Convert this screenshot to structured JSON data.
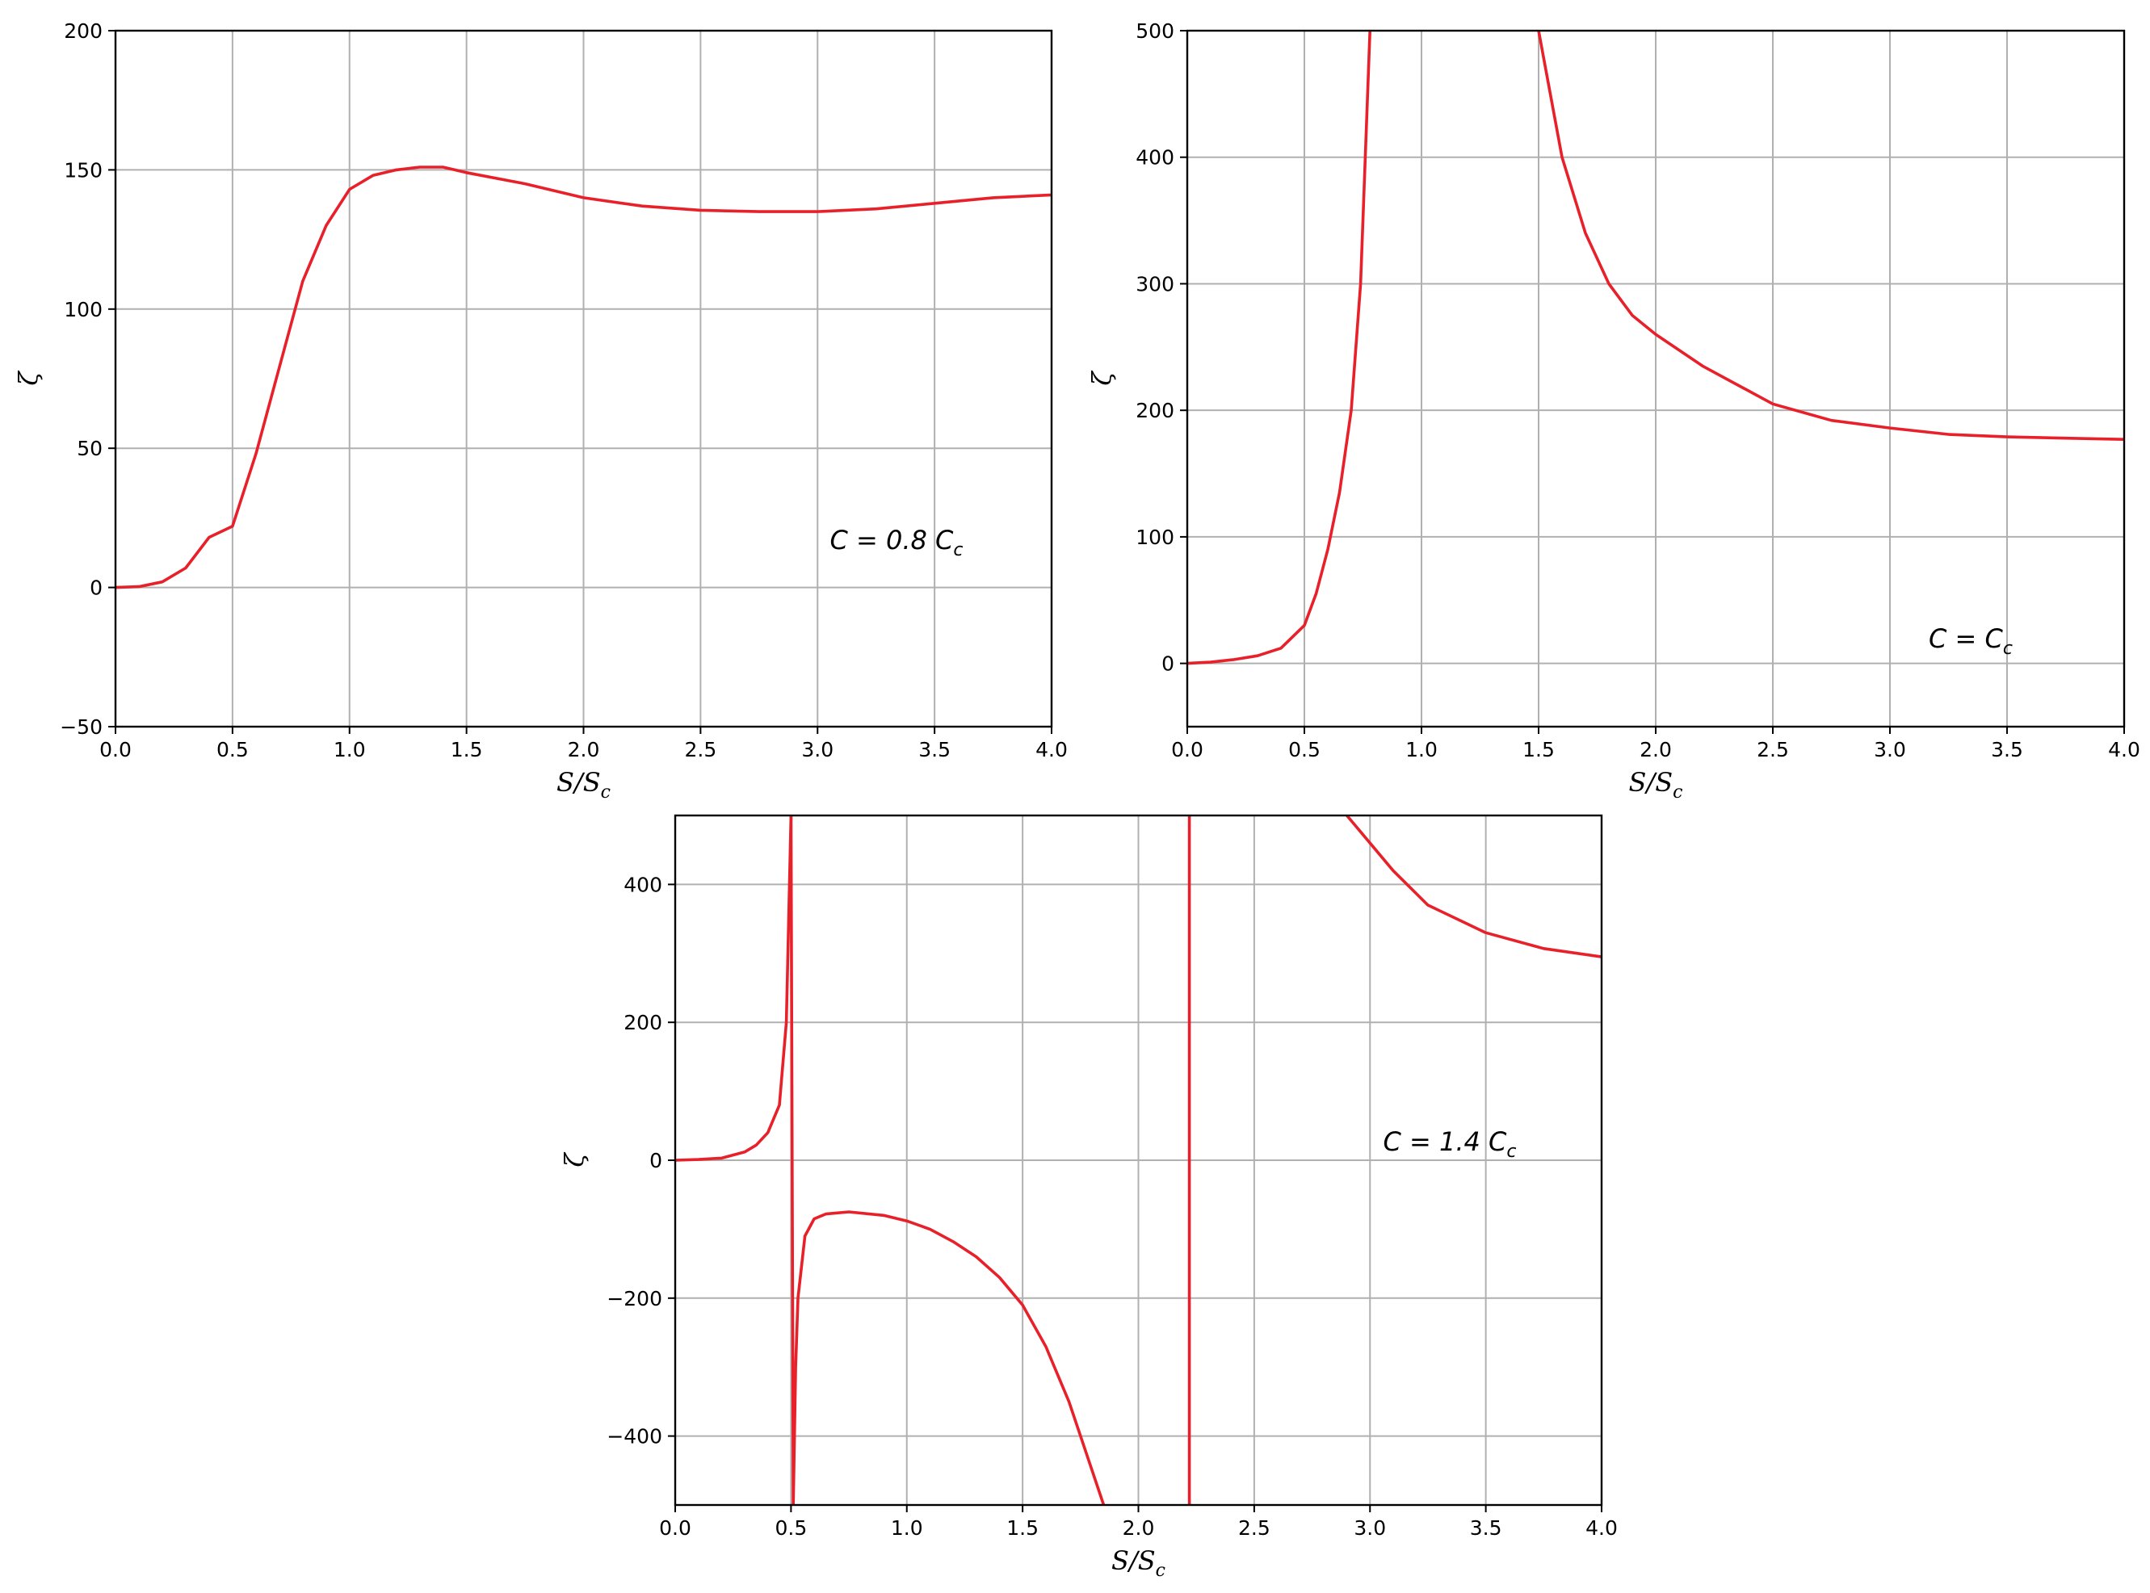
{
  "chart_data": [
    {
      "type": "line",
      "xlabel": "S/S_c",
      "ylabel": "ζ",
      "annotation": {
        "prefix": "C = 0.8 C",
        "subscript": "c"
      },
      "xlim": [
        0,
        4
      ],
      "ylim": [
        -50,
        200
      ],
      "xticks": [
        "0.0",
        "0.5",
        "1.0",
        "1.5",
        "2.0",
        "2.5",
        "3.0",
        "3.5",
        "4.0"
      ],
      "yticks": [
        "−50",
        "0",
        "50",
        "100",
        "150",
        "200"
      ],
      "ytick_values": [
        -50,
        0,
        50,
        100,
        150,
        200
      ],
      "grid": true,
      "color": "#e8202a",
      "series": [
        {
          "x": [
            0,
            0.1,
            0.2,
            0.3,
            0.4,
            0.5,
            0.6,
            0.7,
            0.8,
            0.9,
            1.0,
            1.1,
            1.2,
            1.3,
            1.4,
            1.5,
            1.75,
            2.0,
            2.25,
            2.5,
            2.75,
            3.0,
            3.25,
            3.5,
            3.75,
            4.0
          ],
          "y": [
            0,
            0.3,
            2,
            7,
            18,
            22,
            48,
            79,
            110,
            130,
            143,
            148,
            150,
            151,
            151,
            149,
            145,
            140,
            137,
            135.5,
            135,
            135,
            136,
            138,
            140,
            141
          ]
        }
      ]
    },
    {
      "type": "line",
      "xlabel": "S/S_c",
      "ylabel": "ζ",
      "annotation": {
        "prefix": "C = C",
        "subscript": "c"
      },
      "xlim": [
        0,
        4
      ],
      "ylim": [
        -50,
        500
      ],
      "xticks": [
        "0.0",
        "0.5",
        "1.0",
        "1.5",
        "2.0",
        "2.5",
        "3.0",
        "3.5",
        "4.0"
      ],
      "yticks": [
        "0",
        "100",
        "200",
        "300",
        "400",
        "500"
      ],
      "ytick_values": [
        0,
        100,
        200,
        300,
        400,
        500
      ],
      "grid": true,
      "color": "#e8202a",
      "series": [
        {
          "x": [
            0,
            0.1,
            0.2,
            0.3,
            0.4,
            0.5,
            0.55,
            0.6,
            0.65,
            0.7,
            0.74,
            0.78
          ],
          "y": [
            0,
            1,
            3,
            6,
            12,
            30,
            55,
            90,
            135,
            200,
            300,
            500
          ]
        },
        {
          "x": [
            1.5,
            1.6,
            1.7,
            1.8,
            1.9,
            2.0,
            2.2,
            2.5,
            2.75,
            3.0,
            3.25,
            3.5,
            3.75,
            4.0
          ],
          "y": [
            500,
            400,
            340,
            300,
            275,
            260,
            235,
            205,
            192,
            186,
            181,
            179,
            178,
            177
          ]
        }
      ]
    },
    {
      "type": "line",
      "xlabel": "S/S_c",
      "ylabel": "ζ",
      "annotation": {
        "prefix": "C = 1.4 C",
        "subscript": "c"
      },
      "xlim": [
        0,
        4
      ],
      "ylim": [
        -500,
        500
      ],
      "xticks": [
        "0.0",
        "0.5",
        "1.0",
        "1.5",
        "2.0",
        "2.5",
        "3.0",
        "3.5",
        "4.0"
      ],
      "yticks": [
        "−400",
        "−200",
        "0",
        "200",
        "400"
      ],
      "ytick_values": [
        -400,
        -200,
        0,
        200,
        400
      ],
      "grid": true,
      "color": "#e8202a",
      "series": [
        {
          "x": [
            0,
            0.1,
            0.2,
            0.3,
            0.35,
            0.4,
            0.45,
            0.48,
            0.49,
            0.5
          ],
          "y": [
            0,
            1,
            3,
            12,
            22,
            40,
            80,
            200,
            350,
            500
          ]
        },
        {
          "x": [
            0.5,
            0.505,
            0.51
          ],
          "y": [
            500,
            0,
            -500
          ]
        },
        {
          "x": [
            0.51,
            0.52,
            0.53,
            0.56,
            0.6,
            0.65,
            0.75,
            0.9,
            1.0,
            1.1,
            1.2,
            1.3,
            1.4,
            1.5,
            1.6,
            1.7,
            1.8,
            1.85
          ],
          "y": [
            -500,
            -300,
            -200,
            -110,
            -85,
            -78,
            -75,
            -80,
            -88,
            -100,
            -118,
            -140,
            -170,
            -210,
            -270,
            -350,
            -450,
            -500
          ]
        },
        {
          "x": [
            2.22,
            2.22
          ],
          "y": [
            500,
            -500
          ]
        },
        {
          "x": [
            2.9,
            3.0,
            3.1,
            3.25,
            3.5,
            3.75,
            4.0
          ],
          "y": [
            500,
            460,
            420,
            370,
            330,
            307,
            295
          ]
        }
      ]
    }
  ]
}
